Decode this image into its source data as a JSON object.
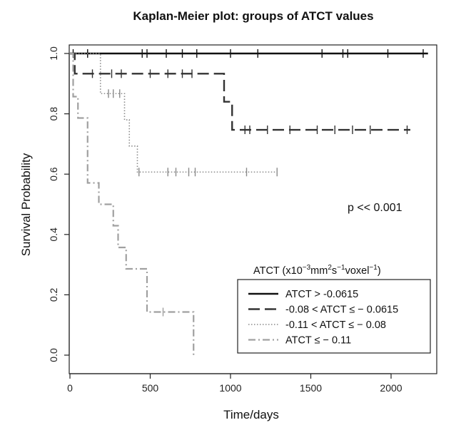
{
  "chart_data": {
    "type": "line",
    "subtype": "kaplan-meier",
    "title": "Kaplan-Meier plot: groups of ATCT values",
    "xlabel": "Time/days",
    "ylabel": "Survival Probability",
    "xlim": [
      0,
      2250
    ],
    "ylim": [
      0,
      1.0
    ],
    "x_ticks": [
      0,
      500,
      1000,
      1500,
      2000
    ],
    "x_tick_labels": [
      "0",
      "500",
      "1000",
      "1500",
      "2000"
    ],
    "y_ticks": [
      0.0,
      0.2,
      0.4,
      0.6,
      0.8,
      1.0
    ],
    "y_tick_labels": [
      "0.0",
      "0.2",
      "0.4",
      "0.6",
      "0.8",
      "1.0"
    ],
    "grid": false,
    "annotation": "p << 0.001",
    "legend": {
      "position": "bottom-right",
      "title": {
        "base": "ATCT (x10",
        "sup1": "−3",
        "mid1": "mm",
        "sup2": "2",
        "mid2": "s",
        "sup3": "−1",
        "mid3": "voxel",
        "sup4": "−1",
        "end": ")"
      }
    },
    "series": [
      {
        "name": "ATCT > -0.0615",
        "color": "#111111",
        "dash": "solid",
        "steps": [
          [
            0,
            1.0
          ],
          [
            2230,
            1.0
          ]
        ],
        "censored": [
          [
            20,
            1.0
          ],
          [
            110,
            1.0
          ],
          [
            450,
            1.0
          ],
          [
            480,
            1.0
          ],
          [
            600,
            1.0
          ],
          [
            700,
            1.0
          ],
          [
            790,
            1.0
          ],
          [
            1000,
            1.0
          ],
          [
            1170,
            1.0
          ],
          [
            1570,
            1.0
          ],
          [
            1700,
            1.0
          ],
          [
            1730,
            1.0
          ],
          [
            1980,
            1.0
          ],
          [
            2200,
            1.0
          ]
        ]
      },
      {
        "name": "-0.08 < ATCT ≤ − 0.0615",
        "color": "#333333",
        "dash": "long-dash",
        "steps": [
          [
            0,
            1.0
          ],
          [
            30,
            0.933
          ],
          [
            960,
            0.84
          ],
          [
            1010,
            0.747
          ],
          [
            2120,
            0.747
          ]
        ],
        "censored": [
          [
            140,
            0.933
          ],
          [
            260,
            0.933
          ],
          [
            320,
            0.933
          ],
          [
            500,
            0.933
          ],
          [
            610,
            0.933
          ],
          [
            700,
            0.933
          ],
          [
            760,
            0.933
          ],
          [
            1090,
            0.747
          ],
          [
            1120,
            0.747
          ],
          [
            1230,
            0.747
          ],
          [
            1370,
            0.747
          ],
          [
            1540,
            0.747
          ],
          [
            1650,
            0.747
          ],
          [
            1760,
            0.747
          ],
          [
            1870,
            0.747
          ],
          [
            2100,
            0.747
          ]
        ]
      },
      {
        "name": "-0.11 < ATCT ≤ − 0.08",
        "color": "#8a8a8a",
        "dash": "dotted",
        "steps": [
          [
            0,
            1.0
          ],
          [
            190,
            0.867
          ],
          [
            340,
            0.78
          ],
          [
            370,
            0.693
          ],
          [
            420,
            0.607
          ],
          [
            1290,
            0.607
          ]
        ],
        "censored": [
          [
            240,
            0.867
          ],
          [
            270,
            0.867
          ],
          [
            310,
            0.867
          ],
          [
            430,
            0.607
          ],
          [
            610,
            0.607
          ],
          [
            660,
            0.607
          ],
          [
            740,
            0.607
          ],
          [
            780,
            0.607
          ],
          [
            1100,
            0.607
          ],
          [
            1290,
            0.607
          ]
        ]
      },
      {
        "name": "ATCT ≤ − 0.11",
        "color": "#a0a0a0",
        "dash": "dash-dot",
        "steps": [
          [
            0,
            1.0
          ],
          [
            20,
            0.857
          ],
          [
            50,
            0.786
          ],
          [
            110,
            0.571
          ],
          [
            180,
            0.5
          ],
          [
            270,
            0.429
          ],
          [
            300,
            0.357
          ],
          [
            350,
            0.286
          ],
          [
            480,
            0.143
          ],
          [
            770,
            0.0
          ]
        ],
        "censored": [
          [
            580,
            0.143
          ]
        ]
      }
    ]
  }
}
